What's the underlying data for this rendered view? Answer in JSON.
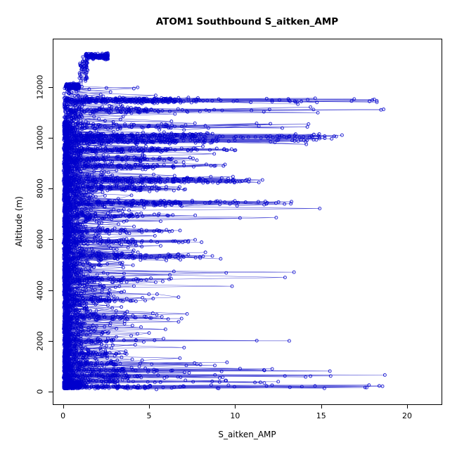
{
  "chart_data": {
    "type": "scatter",
    "title": "ATOM1 Southbound S_aitken_AMP",
    "xlabel": "S_aitken_AMP",
    "ylabel": "Altitude (m)",
    "xlim": [
      -0.6,
      22.0
    ],
    "ylim": [
      -500,
      13900
    ],
    "xticks": [
      0,
      5,
      10,
      15,
      20
    ],
    "yticks": [
      0,
      2000,
      4000,
      6000,
      8000,
      10000,
      12000
    ],
    "grid": false,
    "legend": null,
    "marker": "open-circle",
    "connected": true,
    "point_color": "#0000CD",
    "line_color": "#2222CC",
    "box_color": "#000000",
    "description": "Vertical aerosol profiles: Aitken-mode particle amplitude (S_aitken_AMP) versus altitude from many aircraft ascents/descents. Most points lie between 0 and 3 at all altitudes (0-12000 m), with dense level-flight legs and large horizontal excursions (up to ~21) at specific altitudes; a detached dense cluster sits near 13200 m at x 1.3-2.6.",
    "generation": {
      "seed": 20170129,
      "flights": {
        "count": 18,
        "start_alt": 120,
        "start_blob_n": [
          20,
          45
        ],
        "peak_range": [
          9500,
          12050
        ],
        "step_mean": 95,
        "clean_fraction": 0.45,
        "descend_prob": 0.65,
        "excursion_prob": 0.04
      },
      "legs": [
        {
          "alt": 13200,
          "n": 150,
          "x_min": 1.3,
          "x_typ": 2.5,
          "x_max": 2.62,
          "jit": 55
        },
        {
          "alt": 12750,
          "n": 45,
          "x_min": 0.95,
          "x_typ": 1.35,
          "x_max": 1.45,
          "jit": 260
        },
        {
          "alt": 12020,
          "n": 170,
          "x_min": 0.15,
          "x_typ": 0.85,
          "x_max": 0.95,
          "jit": 60
        },
        {
          "alt": 11470,
          "n": 300,
          "x_min": 0.05,
          "x_typ": 6.5,
          "x_max": 18.6,
          "jit": 55
        },
        {
          "alt": 11080,
          "n": 110,
          "x_min": 0.1,
          "x_typ": 5.0,
          "x_max": 18.9,
          "jit": 60
        },
        {
          "alt": 10450,
          "n": 60,
          "x_min": 0.2,
          "x_typ": 6.0,
          "x_max": 15.3,
          "jit": 60
        },
        {
          "alt": 10060,
          "n": 240,
          "x_min": 0.1,
          "x_typ": 7.5,
          "x_max": 16.3,
          "jit": 55
        },
        {
          "alt": 9870,
          "n": 200,
          "x_min": 0.1,
          "x_typ": 6.5,
          "x_max": 15.8,
          "jit": 50
        },
        {
          "alt": 9520,
          "n": 110,
          "x_min": 0.1,
          "x_typ": 5.5,
          "x_max": 10.2,
          "jit": 55
        },
        {
          "alt": 9160,
          "n": 80,
          "x_min": 0.1,
          "x_typ": 4.5,
          "x_max": 8.2,
          "jit": 50
        },
        {
          "alt": 8870,
          "n": 80,
          "x_min": 0.1,
          "x_typ": 5.0,
          "x_max": 9.6,
          "jit": 50
        },
        {
          "alt": 8320,
          "n": 210,
          "x_min": 0.1,
          "x_typ": 7.0,
          "x_max": 11.8,
          "jit": 60
        },
        {
          "alt": 8020,
          "n": 90,
          "x_min": 0.1,
          "x_typ": 4.5,
          "x_max": 7.2,
          "jit": 50
        },
        {
          "alt": 7430,
          "n": 140,
          "x_min": 0.2,
          "x_typ": 6.8,
          "x_max": 13.5,
          "jit": 55
        },
        {
          "alt": 6920,
          "n": 55,
          "x_min": 0.1,
          "x_typ": 4.0,
          "x_max": 8.1,
          "jit": 50
        },
        {
          "alt": 6320,
          "n": 50,
          "x_min": 0.1,
          "x_typ": 3.5,
          "x_max": 7.0,
          "jit": 50
        },
        {
          "alt": 5910,
          "n": 55,
          "x_min": 0.1,
          "x_typ": 4.0,
          "x_max": 8.2,
          "jit": 45
        },
        {
          "alt": 5330,
          "n": 95,
          "x_min": 0.1,
          "x_typ": 4.5,
          "x_max": 9.5,
          "jit": 70
        },
        {
          "alt": 4420,
          "n": 55,
          "x_min": 0.1,
          "x_typ": 3.5,
          "x_max": 6.5,
          "jit": 50
        },
        {
          "alt": 3620,
          "n": 45,
          "x_min": 0.1,
          "x_typ": 3.0,
          "x_max": 5.6,
          "jit": 50
        },
        {
          "alt": 2920,
          "n": 45,
          "x_min": 0.1,
          "x_typ": 3.0,
          "x_max": 7.2,
          "jit": 45
        },
        {
          "alt": 2010,
          "n": 40,
          "x_min": 0.1,
          "x_typ": 3.0,
          "x_max": 13.4,
          "jit": 45
        },
        {
          "alt": 1480,
          "n": 45,
          "x_min": 0.05,
          "x_typ": 2.5,
          "x_max": 5.1,
          "jit": 45
        },
        {
          "alt": 1090,
          "n": 50,
          "x_min": 0.05,
          "x_typ": 3.0,
          "x_max": 9.7,
          "jit": 45
        },
        {
          "alt": 840,
          "n": 60,
          "x_min": 0.05,
          "x_typ": 3.5,
          "x_max": 16.5,
          "jit": 45
        },
        {
          "alt": 620,
          "n": 70,
          "x_min": 0.05,
          "x_typ": 4.0,
          "x_max": 20.9,
          "jit": 45
        },
        {
          "alt": 390,
          "n": 55,
          "x_min": 0.05,
          "x_typ": 3.5,
          "x_max": 13.0,
          "jit": 40
        },
        {
          "alt": 190,
          "n": 110,
          "x_min": 0.05,
          "x_typ": 5.0,
          "x_max": 18.8,
          "jit": 40
        }
      ]
    }
  }
}
